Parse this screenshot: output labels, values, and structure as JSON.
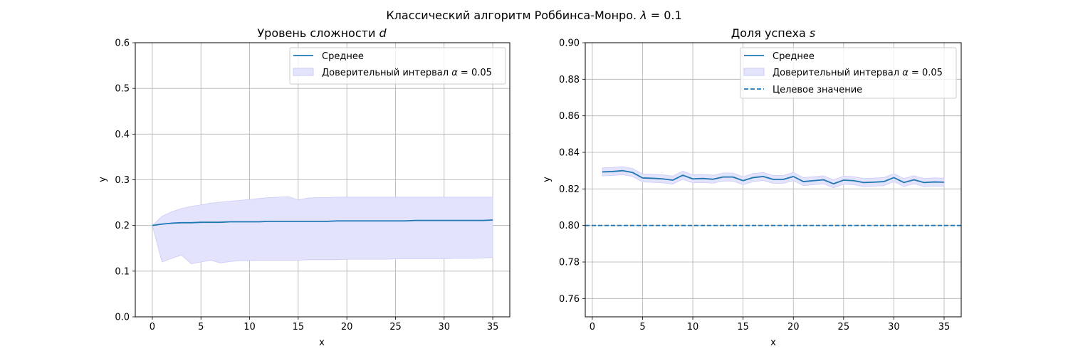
{
  "figure": {
    "suptitle": "Классический алгоритм Роббинса-Монро. ",
    "suptitle_math_var": "λ",
    "suptitle_math_rest": " = 0.1"
  },
  "chart_data": [
    {
      "type": "line",
      "title": "Уровень сложности ",
      "title_math": "d",
      "xlabel": "x",
      "ylabel": "y",
      "xlim": [
        -1.75,
        36.75
      ],
      "ylim": [
        0.0,
        0.6
      ],
      "xticks": [
        0,
        5,
        10,
        15,
        20,
        25,
        30,
        35
      ],
      "yticks": [
        0.0,
        0.1,
        0.2,
        0.3,
        0.4,
        0.5,
        0.6
      ],
      "grid": true,
      "legend_position": "top-right",
      "legend": {
        "mean_label": "Среднее",
        "ci_label": "Доверительный интервал ",
        "ci_math_var": "α",
        "ci_math_rest": " = 0.05"
      },
      "colors": {
        "line": "#1f77b4",
        "band_fill": "#e3e3fc",
        "band_edge": "#ccccf7",
        "grid": "#b0b0b0"
      },
      "x": [
        0,
        1,
        2,
        3,
        4,
        5,
        6,
        7,
        8,
        9,
        10,
        11,
        12,
        13,
        14,
        15,
        16,
        17,
        18,
        19,
        20,
        21,
        22,
        23,
        24,
        25,
        26,
        27,
        28,
        29,
        30,
        31,
        32,
        33,
        34,
        35
      ],
      "series": [
        {
          "name": "Среднее",
          "kind": "line",
          "values": [
            0.2,
            0.203,
            0.205,
            0.206,
            0.206,
            0.207,
            0.207,
            0.207,
            0.208,
            0.208,
            0.208,
            0.208,
            0.209,
            0.209,
            0.209,
            0.209,
            0.209,
            0.209,
            0.209,
            0.21,
            0.21,
            0.21,
            0.21,
            0.21,
            0.21,
            0.21,
            0.21,
            0.211,
            0.211,
            0.211,
            0.211,
            0.211,
            0.211,
            0.211,
            0.211,
            0.212
          ]
        },
        {
          "name": "Доверительный интервал α = 0.05",
          "kind": "band",
          "upper": [
            0.2,
            0.22,
            0.23,
            0.237,
            0.242,
            0.245,
            0.249,
            0.251,
            0.253,
            0.255,
            0.257,
            0.259,
            0.261,
            0.262,
            0.263,
            0.256,
            0.26,
            0.261,
            0.261,
            0.262,
            0.262,
            0.262,
            0.262,
            0.262,
            0.262,
            0.262,
            0.262,
            0.262,
            0.262,
            0.262,
            0.262,
            0.262,
            0.262,
            0.262,
            0.262,
            0.262
          ],
          "lower": [
            0.2,
            0.12,
            0.128,
            0.135,
            0.116,
            0.12,
            0.124,
            0.118,
            0.121,
            0.123,
            0.123,
            0.124,
            0.124,
            0.124,
            0.124,
            0.124,
            0.125,
            0.125,
            0.125,
            0.125,
            0.126,
            0.126,
            0.126,
            0.126,
            0.126,
            0.127,
            0.127,
            0.127,
            0.127,
            0.127,
            0.127,
            0.128,
            0.128,
            0.128,
            0.129,
            0.13
          ]
        }
      ]
    },
    {
      "type": "line",
      "title": "Доля успеха ",
      "title_math": "s",
      "xlabel": "x",
      "ylabel": "y",
      "xlim": [
        -0.7,
        36.7
      ],
      "ylim": [
        0.75,
        0.9
      ],
      "xticks": [
        0,
        5,
        10,
        15,
        20,
        25,
        30,
        35
      ],
      "yticks": [
        0.76,
        0.78,
        0.8,
        0.82,
        0.84,
        0.86,
        0.88,
        0.9
      ],
      "grid": true,
      "legend_position": "top-right",
      "legend": {
        "mean_label": "Среднее",
        "ci_label": "Доверительный интервал ",
        "ci_math_var": "α",
        "ci_math_rest": " = 0.05",
        "target_label": "Целевое значение"
      },
      "colors": {
        "line": "#1f77b4",
        "band_fill": "#e3e3fc",
        "band_edge": "#ccccf7",
        "grid": "#b0b0b0"
      },
      "x": [
        1,
        2,
        3,
        4,
        5,
        6,
        7,
        8,
        9,
        10,
        11,
        12,
        13,
        14,
        15,
        16,
        17,
        18,
        19,
        20,
        21,
        22,
        23,
        24,
        25,
        26,
        27,
        28,
        29,
        30,
        31,
        32,
        33,
        34,
        35
      ],
      "target": 0.8,
      "series": [
        {
          "name": "Среднее",
          "kind": "line",
          "values": [
            0.8293,
            0.8295,
            0.83,
            0.829,
            0.826,
            0.8258,
            0.8255,
            0.8248,
            0.8275,
            0.8255,
            0.8257,
            0.8253,
            0.8265,
            0.8265,
            0.8245,
            0.8262,
            0.8268,
            0.8252,
            0.8252,
            0.8268,
            0.824,
            0.8245,
            0.825,
            0.8228,
            0.8248,
            0.8245,
            0.8235,
            0.8237,
            0.824,
            0.8262,
            0.8235,
            0.825,
            0.8235,
            0.8238,
            0.8237
          ]
        },
        {
          "name": "Доверительный интервал α = 0.05",
          "kind": "band",
          "upper": [
            0.8315,
            0.8317,
            0.8322,
            0.8312,
            0.8282,
            0.828,
            0.8277,
            0.827,
            0.8297,
            0.8277,
            0.8279,
            0.8275,
            0.8287,
            0.8287,
            0.8267,
            0.8284,
            0.829,
            0.8274,
            0.8274,
            0.829,
            0.8262,
            0.8267,
            0.8272,
            0.825,
            0.827,
            0.8267,
            0.8257,
            0.8259,
            0.8262,
            0.8284,
            0.8257,
            0.8272,
            0.8257,
            0.826,
            0.8259
          ],
          "lower": [
            0.8271,
            0.8273,
            0.8278,
            0.8268,
            0.8238,
            0.8236,
            0.8233,
            0.8226,
            0.8253,
            0.8233,
            0.8235,
            0.8231,
            0.8243,
            0.8243,
            0.8223,
            0.824,
            0.8246,
            0.823,
            0.823,
            0.8246,
            0.8218,
            0.8223,
            0.8228,
            0.8206,
            0.8226,
            0.8223,
            0.8213,
            0.8215,
            0.8218,
            0.824,
            0.8213,
            0.8228,
            0.8213,
            0.8216,
            0.8215
          ]
        },
        {
          "name": "Целевое значение",
          "kind": "hline",
          "value": 0.8
        }
      ]
    }
  ]
}
